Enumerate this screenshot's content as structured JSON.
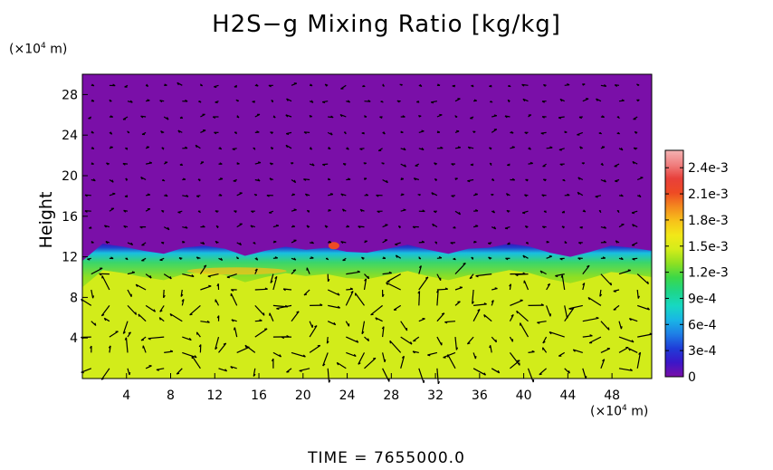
{
  "chart_data": {
    "type": "heatmap",
    "title": "H2S−g Mixing Ratio [kg/kg]",
    "ylabel": "Height",
    "y_unit": "(×10",
    "y_unit_exp": "4",
    "y_unit_suffix": " m)",
    "x_unit": "(×10",
    "x_unit_exp": "4",
    "x_unit_suffix": " m)",
    "footer": "TIME  =  7655000.0",
    "xlim": [
      0,
      51.6
    ],
    "ylim": [
      0,
      30
    ],
    "x_ticks": [
      4,
      8,
      12,
      16,
      20,
      24,
      28,
      32,
      36,
      40,
      44,
      48
    ],
    "y_ticks": [
      4,
      8,
      12,
      16,
      20,
      24,
      28
    ],
    "colorbar": {
      "range": [
        0,
        0.0026
      ],
      "ticks": [
        {
          "value": 0,
          "label": "0"
        },
        {
          "value": 0.0003,
          "label": "3e-4"
        },
        {
          "value": 0.0006,
          "label": "6e-4"
        },
        {
          "value": 0.0009,
          "label": "9e-4"
        },
        {
          "value": 0.0012,
          "label": "1.2e-3"
        },
        {
          "value": 0.0015,
          "label": "1.5e-3"
        },
        {
          "value": 0.0018,
          "label": "1.8e-3"
        },
        {
          "value": 0.0021,
          "label": "2.1e-3"
        },
        {
          "value": 0.0024,
          "label": "2.4e-3"
        }
      ],
      "colors": [
        "#7a0fa8",
        "#3b16c8",
        "#1f3cd8",
        "#1e7ee6",
        "#19b5e6",
        "#17d8c2",
        "#1ed68a",
        "#3bd848",
        "#8ee022",
        "#d4ec1a",
        "#f2e818",
        "#f7c21a",
        "#f48a1e",
        "#ee4a24",
        "#e8403a",
        "#f08080",
        "#f4b2b2"
      ]
    },
    "fields": {
      "upper_value": 0,
      "lower_value": 0.0016,
      "interface_height": [
        11.6,
        13.3,
        13.0,
        12.6,
        12.3,
        12.9,
        13.1,
        12.8,
        12.1,
        12.6,
        13.0,
        12.7,
        12.9,
        12.5,
        12.4,
        12.8,
        13.2,
        12.7,
        12.3,
        12.8,
        12.9,
        13.3,
        13.0,
        12.4,
        12.0,
        12.5,
        13.1,
        12.9,
        12.6
      ]
    }
  }
}
